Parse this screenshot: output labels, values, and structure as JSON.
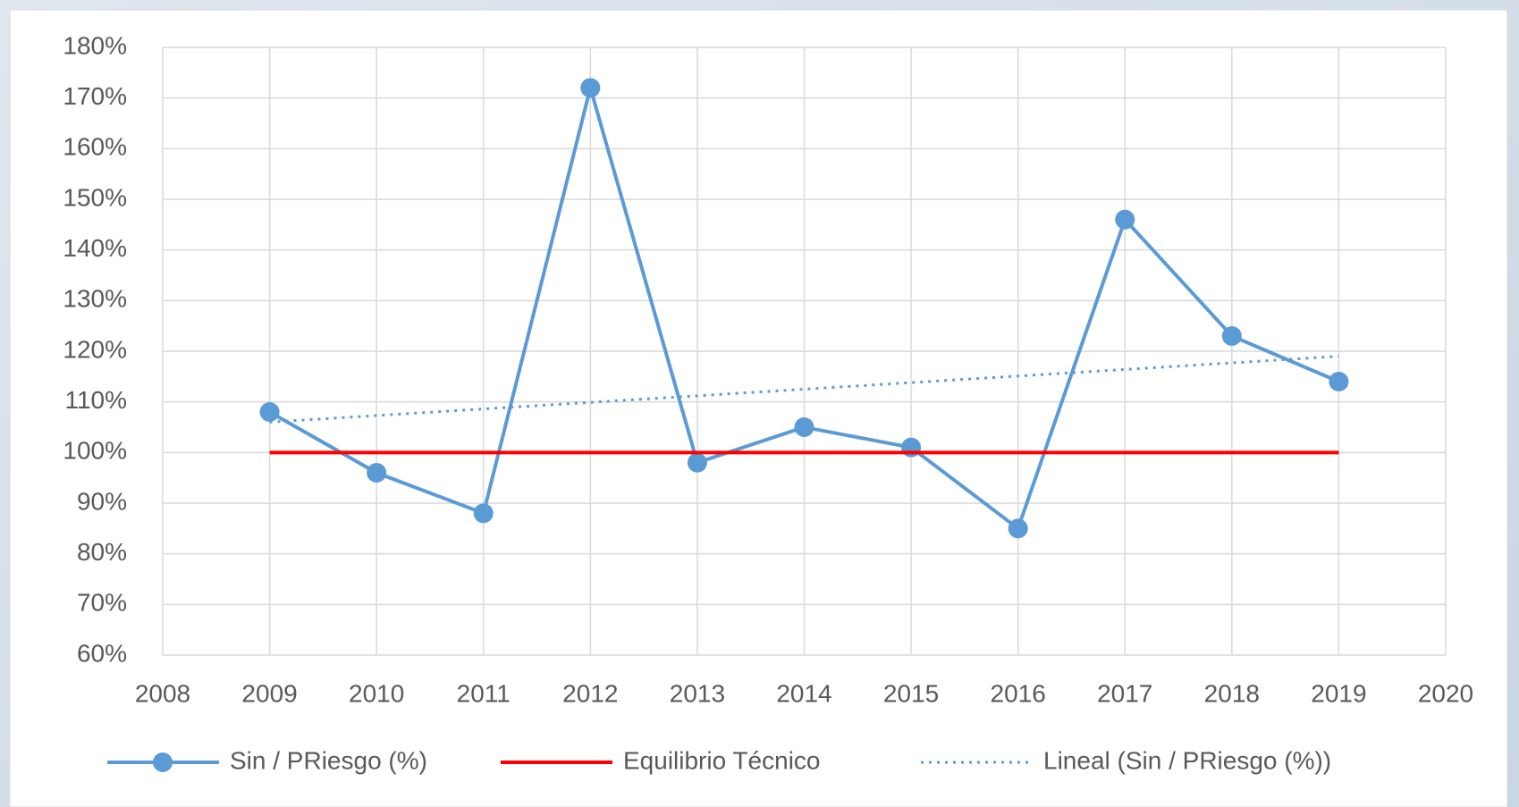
{
  "chart_data": {
    "type": "line",
    "x": [
      2009,
      2010,
      2011,
      2012,
      2013,
      2014,
      2015,
      2016,
      2017,
      2018,
      2019
    ],
    "series": [
      {
        "name": "Sin / PRiesgo (%)",
        "color": "#5b9bd5",
        "style": "solid-markers",
        "values": [
          108,
          96,
          88,
          172,
          98,
          105,
          101,
          85,
          146,
          123,
          114
        ]
      },
      {
        "name": "Equilibrio Técnico",
        "color": "#ff0000",
        "style": "solid",
        "values": [
          100,
          100,
          100,
          100,
          100,
          100,
          100,
          100,
          100,
          100,
          100
        ]
      },
      {
        "name": "Lineal (Sin / PRiesgo (%))",
        "color": "#5b9bd5",
        "style": "dotted",
        "values": [
          106,
          107.3,
          108.6,
          109.9,
          111.2,
          112.5,
          113.8,
          115.1,
          116.4,
          117.7,
          119
        ]
      }
    ],
    "xlim": [
      2008,
      2020
    ],
    "xticks": [
      2008,
      2009,
      2010,
      2011,
      2012,
      2013,
      2014,
      2015,
      2016,
      2017,
      2018,
      2019,
      2020
    ],
    "ylim": [
      60,
      180
    ],
    "yticks": [
      {
        "value": 60,
        "label": "60%"
      },
      {
        "value": 70,
        "label": "70%"
      },
      {
        "value": 80,
        "label": "80%"
      },
      {
        "value": 90,
        "label": "90%"
      },
      {
        "value": 100,
        "label": "100%"
      },
      {
        "value": 110,
        "label": "110%"
      },
      {
        "value": 120,
        "label": "120%"
      },
      {
        "value": 130,
        "label": "130%"
      },
      {
        "value": 140,
        "label": "140%"
      },
      {
        "value": 150,
        "label": "150%"
      },
      {
        "value": 160,
        "label": "160%"
      },
      {
        "value": 170,
        "label": "170%"
      },
      {
        "value": 180,
        "label": "180%"
      }
    ],
    "grid": true,
    "legend": "bottom"
  }
}
